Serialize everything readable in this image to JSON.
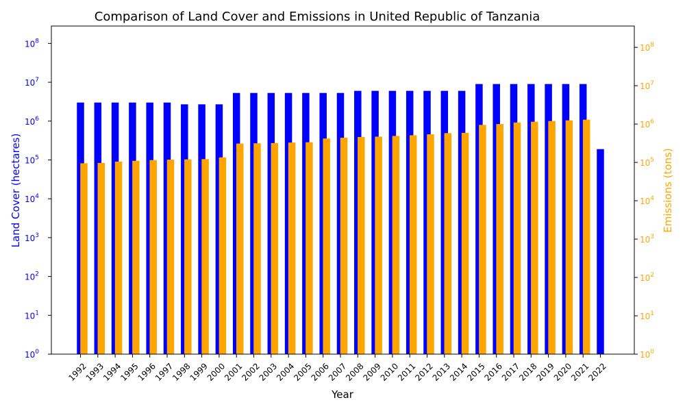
{
  "chart_data": {
    "type": "bar",
    "title": "Comparison of Land Cover and Emissions in United Republic of Tanzania",
    "xlabel": "Year",
    "ylabel_left": "Land Cover (hectares)",
    "ylabel_right": "Emissions (tons)",
    "yscale": "log",
    "ylim_left": [
      1,
      280000000
    ],
    "ylim_right": [
      1,
      360000000
    ],
    "grid": false,
    "colors": {
      "land_cover": "#0000ff",
      "emissions": "#ffa500"
    },
    "categories": [
      "1992",
      "1993",
      "1994",
      "1995",
      "1996",
      "1997",
      "1998",
      "1999",
      "2000",
      "2001",
      "2002",
      "2003",
      "2004",
      "2005",
      "2006",
      "2007",
      "2008",
      "2009",
      "2010",
      "2011",
      "2012",
      "2013",
      "2014",
      "2015",
      "2016",
      "2017",
      "2018",
      "2019",
      "2020",
      "2021",
      "2022"
    ],
    "series": [
      {
        "key": "land_cover",
        "axis": "left",
        "values": [
          3000000,
          3000000,
          3000000,
          3000000,
          3000000,
          3000000,
          2700000,
          2700000,
          2700000,
          5300000,
          5300000,
          5300000,
          5300000,
          5300000,
          5300000,
          5300000,
          6000000,
          6000000,
          6000000,
          6000000,
          6000000,
          6000000,
          6000000,
          9000000,
          9000000,
          9000000,
          9000000,
          9000000,
          9000000,
          9000000,
          190000
        ]
      },
      {
        "key": "emissions",
        "axis": "right",
        "values": [
          95000,
          97000,
          105000,
          110000,
          115000,
          118000,
          120000,
          122000,
          135000,
          310000,
          315000,
          320000,
          330000,
          335000,
          420000,
          440000,
          460000,
          470000,
          490000,
          510000,
          540000,
          580000,
          590000,
          950000,
          1000000,
          1100000,
          1150000,
          1200000,
          1250000,
          1300000,
          null
        ]
      }
    ],
    "yticks_left": [
      "10^0",
      "10^1",
      "10^2",
      "10^3",
      "10^4",
      "10^5",
      "10^6",
      "10^7",
      "10^8"
    ],
    "yticks_right": [
      "10^0",
      "10^1",
      "10^2",
      "10^3",
      "10^4",
      "10^5",
      "10^6",
      "10^7",
      "10^8"
    ]
  }
}
